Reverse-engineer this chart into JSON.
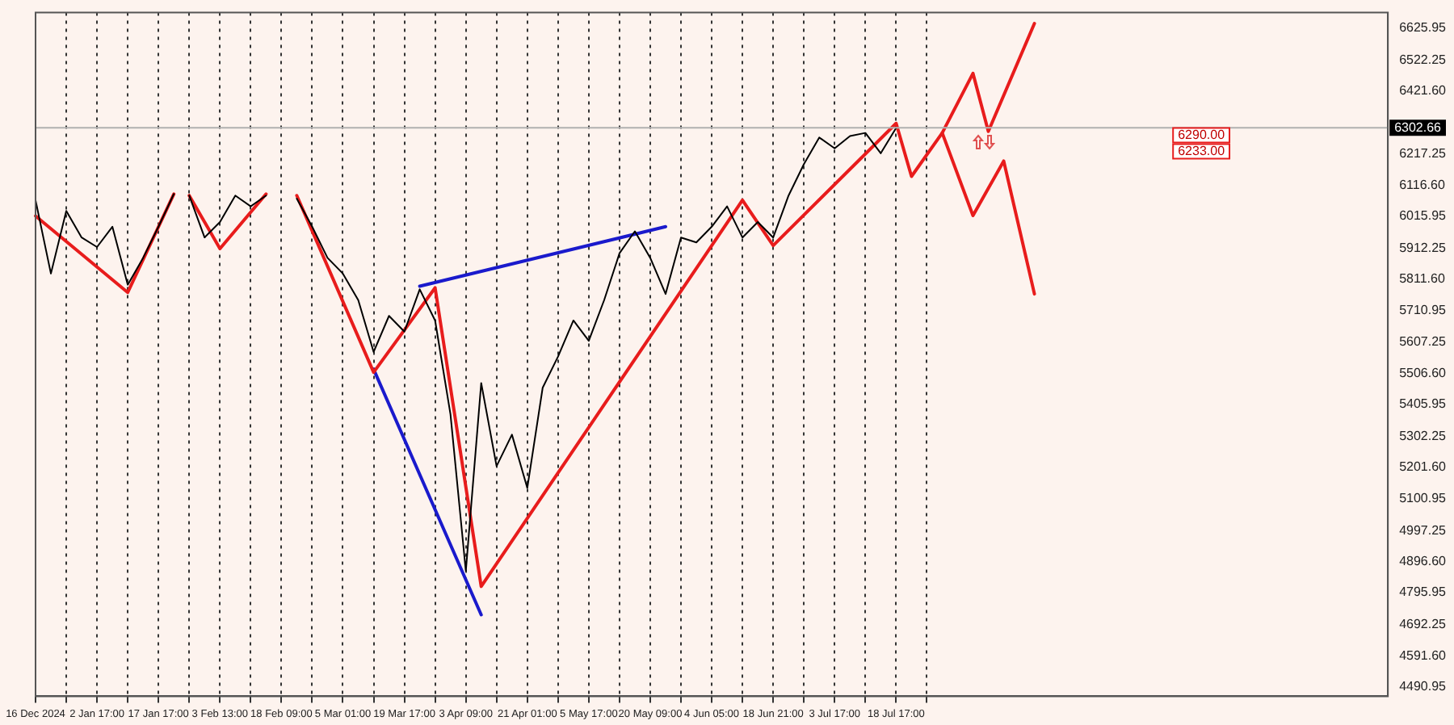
{
  "chart_data": {
    "type": "line",
    "ylim": [
      4460,
      6676
    ],
    "categories": [
      "16 Dec 2024",
      null,
      null,
      null,
      "2 Jan 17:00",
      null,
      null,
      null,
      "17 Jan 17:00",
      null,
      null,
      null,
      "3 Feb 13:00",
      null,
      null,
      null,
      "18 Feb 09:00",
      null,
      null,
      null,
      "5 Mar 01:00",
      null,
      null,
      null,
      "19 Mar 17:00",
      null,
      null,
      null,
      "3 Apr 09:00",
      null,
      null,
      null,
      "21 Apr 01:00",
      null,
      null,
      null,
      "5 May 17:00",
      null,
      null,
      null,
      "20 May 09:00",
      null,
      null,
      null,
      "4 Jun 05:00",
      null,
      null,
      null,
      "18 Jun 21:00",
      null,
      null,
      null,
      "3 Jul 17:00",
      null,
      null,
      null,
      "18 Jul 17:00",
      null,
      null,
      null,
      null,
      null,
      null,
      null,
      null,
      null,
      null,
      null,
      null,
      null,
      null,
      null,
      null,
      null,
      null,
      null,
      null,
      null,
      null,
      null,
      null,
      null,
      null,
      null,
      null,
      null,
      null,
      null,
      null
    ],
    "yticks": [
      {
        "value": 6625.95,
        "label": "6625.95"
      },
      {
        "value": 6522.25,
        "label": "6522.25"
      },
      {
        "value": 6421.6,
        "label": "6421.60"
      },
      {
        "value": 6217.25,
        "label": "6217.25"
      },
      {
        "value": 6116.6,
        "label": "6116.60"
      },
      {
        "value": 6015.95,
        "label": "6015.95"
      },
      {
        "value": 5912.25,
        "label": "5912.25"
      },
      {
        "value": 5811.6,
        "label": "5811.60"
      },
      {
        "value": 5710.95,
        "label": "5710.95"
      },
      {
        "value": 5607.25,
        "label": "5607.25"
      },
      {
        "value": 5506.6,
        "label": "5506.60"
      },
      {
        "value": 5405.95,
        "label": "5405.95"
      },
      {
        "value": 5302.25,
        "label": "5302.25"
      },
      {
        "value": 5201.6,
        "label": "5201.60"
      },
      {
        "value": 5100.95,
        "label": "5100.95"
      },
      {
        "value": 4997.25,
        "label": "4997.25"
      },
      {
        "value": 4896.6,
        "label": "4896.60"
      },
      {
        "value": 4795.95,
        "label": "4795.95"
      },
      {
        "value": 4692.25,
        "label": "4692.25"
      },
      {
        "value": 4591.6,
        "label": "4591.60"
      },
      {
        "value": 4490.95,
        "label": "4490.95"
      }
    ],
    "grid": "x",
    "legend": false,
    "marker": "none",
    "line_style": "solid",
    "series": [
      {
        "color": "#000000",
        "values": [
          6068,
          5830,
          6033,
          5947,
          5916,
          5982,
          5794,
          5881,
          5982,
          6088,
          null,
          null,
          null,
          null,
          null,
          null,
          null,
          null,
          null,
          null,
          null,
          null,
          null,
          null,
          null,
          null,
          null,
          null,
          null,
          null,
          null,
          null,
          null,
          null,
          null,
          null,
          null,
          null,
          null,
          null,
          null,
          null,
          null,
          null,
          null,
          null,
          null,
          null,
          null,
          null,
          null,
          null,
          null,
          null,
          null,
          null,
          null,
          null,
          null,
          null,
          null,
          null,
          null,
          null,
          null,
          null,
          null,
          null,
          null,
          null,
          null,
          null,
          null,
          null,
          null,
          null,
          null,
          null,
          null,
          null,
          null,
          null,
          null,
          null,
          null,
          null,
          null,
          null,
          null
        ]
      },
      {
        "color": "#000000",
        "values": [
          null,
          null,
          null,
          null,
          null,
          null,
          null,
          null,
          null,
          null,
          6083,
          5947,
          5997,
          6083,
          6048,
          6083,
          null,
          null,
          null,
          null,
          null,
          null,
          null,
          null,
          null,
          null,
          null,
          null,
          null,
          null,
          null,
          null,
          null,
          null,
          null,
          null,
          null,
          null,
          null,
          null,
          null,
          null,
          null,
          null,
          null,
          null,
          null,
          null,
          null,
          null,
          null,
          null,
          null,
          null,
          null,
          null,
          null,
          null,
          null,
          null,
          null,
          null,
          null,
          null,
          null,
          null,
          null,
          null,
          null,
          null,
          null,
          null,
          null,
          null,
          null,
          null,
          null,
          null,
          null,
          null,
          null,
          null,
          null,
          null,
          null,
          null,
          null,
          null,
          null
        ]
      },
      {
        "color": "#000000",
        "values": [
          null,
          null,
          null,
          null,
          null,
          null,
          null,
          null,
          null,
          null,
          null,
          null,
          null,
          null,
          null,
          null,
          null,
          6073,
          5982,
          5881,
          5830,
          5744,
          5576,
          5693,
          5642,
          5779,
          5678,
          5374,
          4866,
          5475,
          5206,
          5308,
          5135,
          5460,
          5561,
          5678,
          5612,
          5744,
          5896,
          5967,
          5881,
          5764,
          5947,
          5931,
          5982,
          6048,
          5947,
          5997,
          5947,
          6083,
          6185,
          6271,
          6236,
          6276,
          6286,
          6220,
          6302,
          null,
          null,
          null,
          null,
          null,
          null,
          null,
          null,
          null,
          null,
          null,
          null,
          null,
          null,
          null,
          null,
          null,
          null,
          null,
          null,
          null,
          null,
          null,
          null,
          null,
          null,
          null,
          null,
          null,
          null,
          null,
          null
        ]
      },
      {
        "color": "#e81c1c",
        "values": [
          6017,
          null,
          null,
          null,
          null,
          null,
          5769,
          null,
          null,
          6088,
          null,
          null,
          null,
          null,
          null,
          null,
          null,
          null,
          null,
          null,
          null,
          null,
          null,
          null,
          null,
          null,
          null,
          null,
          null,
          null,
          null,
          null,
          null,
          null,
          null,
          null,
          null,
          null,
          null,
          null,
          null,
          null,
          null,
          null,
          null,
          null,
          null,
          null,
          null,
          null,
          null,
          null,
          null,
          null,
          null,
          null,
          null,
          null,
          null,
          null,
          null,
          null,
          null,
          null,
          null,
          null,
          null,
          null,
          null,
          null,
          null,
          null,
          null,
          null,
          null,
          null,
          null,
          null,
          null,
          null,
          null,
          null,
          null,
          null,
          null,
          null,
          null,
          null,
          null
        ]
      },
      {
        "color": "#e81c1c",
        "values": [
          null,
          null,
          null,
          null,
          null,
          null,
          null,
          null,
          null,
          null,
          6083,
          null,
          5911,
          null,
          null,
          6088,
          null,
          null,
          null,
          null,
          null,
          null,
          null,
          null,
          null,
          null,
          null,
          null,
          null,
          null,
          null,
          null,
          null,
          null,
          null,
          null,
          null,
          null,
          null,
          null,
          null,
          null,
          null,
          null,
          null,
          null,
          null,
          null,
          null,
          null,
          null,
          null,
          null,
          null,
          null,
          null,
          null,
          null,
          null,
          null,
          null,
          null,
          null,
          null,
          null,
          null,
          null,
          null,
          null,
          null,
          null,
          null,
          null,
          null,
          null,
          null,
          null,
          null,
          null,
          null,
          null,
          null,
          null,
          null,
          null,
          null,
          null,
          null,
          null
        ]
      },
      {
        "color": "#e81c1c",
        "values": [
          null,
          null,
          null,
          null,
          null,
          null,
          null,
          null,
          null,
          null,
          null,
          null,
          null,
          null,
          null,
          null,
          null,
          6083,
          null,
          null,
          null,
          null,
          5510,
          null,
          null,
          null,
          5784,
          null,
          null,
          4816,
          null,
          null,
          null,
          null,
          null,
          null,
          null,
          null,
          null,
          null,
          null,
          null,
          null,
          null,
          null,
          null,
          6068,
          null,
          5921,
          null,
          null,
          null,
          null,
          null,
          null,
          null,
          6317,
          6145,
          null,
          6286,
          null,
          6479,
          6291,
          null,
          null,
          6641,
          null,
          null,
          null,
          null,
          null,
          null,
          null,
          null,
          null,
          null,
          null,
          null,
          null,
          null,
          null,
          null,
          null,
          null,
          null,
          null,
          null,
          null,
          null
        ]
      },
      {
        "color": "#e81c1c",
        "values": [
          null,
          null,
          null,
          null,
          null,
          null,
          null,
          null,
          null,
          null,
          null,
          null,
          null,
          null,
          null,
          null,
          null,
          null,
          null,
          null,
          null,
          null,
          null,
          null,
          null,
          null,
          null,
          null,
          null,
          null,
          null,
          null,
          null,
          null,
          null,
          null,
          null,
          null,
          null,
          null,
          null,
          null,
          null,
          null,
          null,
          null,
          null,
          null,
          null,
          null,
          null,
          null,
          null,
          null,
          null,
          null,
          null,
          null,
          null,
          6286,
          null,
          6018,
          null,
          6195,
          null,
          5764,
          null,
          null,
          null,
          null,
          null,
          null,
          null,
          null,
          null,
          null,
          null,
          null,
          null,
          null,
          null,
          null,
          null,
          null,
          null,
          null,
          null,
          null,
          null
        ]
      },
      {
        "color": "#1a1acc",
        "values": [
          null,
          null,
          null,
          null,
          null,
          null,
          null,
          null,
          null,
          null,
          null,
          null,
          null,
          null,
          null,
          null,
          null,
          null,
          null,
          null,
          null,
          null,
          null,
          null,
          null,
          5789,
          null,
          null,
          null,
          null,
          null,
          null,
          null,
          null,
          null,
          null,
          null,
          null,
          null,
          null,
          null,
          5982,
          null,
          null,
          null,
          null,
          null,
          null,
          null,
          null,
          null,
          null,
          null,
          null,
          null,
          null,
          null,
          null,
          null,
          null,
          null,
          null,
          null,
          null,
          null,
          null,
          null,
          null,
          null,
          null,
          null,
          null,
          null,
          null,
          null,
          null,
          null,
          null,
          null,
          null,
          null,
          null,
          null,
          null,
          null,
          null,
          null,
          null,
          null
        ]
      },
      {
        "color": "#1a1acc",
        "values": [
          null,
          null,
          null,
          null,
          null,
          null,
          null,
          null,
          null,
          null,
          null,
          null,
          null,
          null,
          null,
          null,
          null,
          null,
          null,
          null,
          null,
          null,
          5520,
          null,
          null,
          null,
          null,
          null,
          null,
          4724,
          null,
          null,
          null,
          null,
          null,
          null,
          null,
          null,
          null,
          null,
          null,
          null,
          null,
          null,
          null,
          null,
          null,
          null,
          null,
          null,
          null,
          null,
          null,
          null,
          null,
          null,
          null,
          null,
          null,
          null,
          null,
          null,
          null,
          null,
          null,
          null,
          null,
          null,
          null,
          null,
          null,
          null,
          null,
          null,
          null,
          null,
          null,
          null,
          null,
          null,
          null,
          null,
          null,
          null,
          null,
          null,
          null,
          null,
          null
        ]
      }
    ],
    "ref_lines": [
      {
        "axis": "y",
        "value": 6302.66,
        "label": "6302.66",
        "color": "#b0b0b0"
      }
    ],
    "annotations": [
      "6290.00",
      "6233.00"
    ]
  }
}
